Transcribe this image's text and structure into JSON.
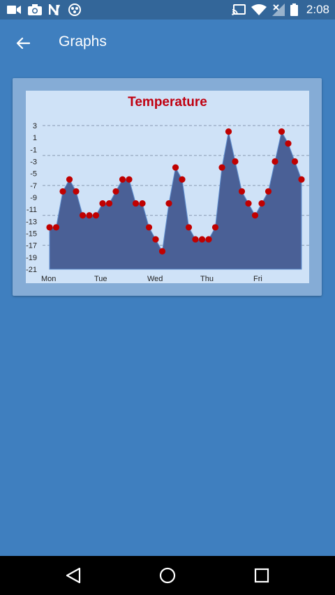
{
  "status_bar": {
    "time": "2:08",
    "left_icons": [
      "videocam-icon",
      "camera-icon",
      "n-notification-icon",
      "sync-dots-icon"
    ],
    "right_icons": [
      "cast-icon",
      "wifi-icon",
      "signal-off-icon",
      "battery-icon"
    ]
  },
  "app_bar": {
    "title": "Graphs"
  },
  "colors": {
    "background": "#3f7fbf",
    "status_bar": "#336699",
    "card": "#85acd6",
    "plot_bg": "#cfe2f7",
    "area_fill": "#4a6096",
    "marker": "#c00000",
    "title": "#c00010"
  },
  "chart_data": {
    "type": "area",
    "title": "Temperature",
    "xlabel": "",
    "ylabel": "",
    "ylim": [
      -21,
      3
    ],
    "y_ticks": [
      3,
      1,
      -1,
      -3,
      -5,
      -7,
      -9,
      -11,
      -13,
      -15,
      -17,
      -19,
      -21
    ],
    "gridlines_at": [
      3,
      -2,
      -7,
      -12,
      -17
    ],
    "x_tick_labels": [
      "Mon",
      "Tue",
      "Wed",
      "Thu",
      "Fri"
    ],
    "points_per_day": 8,
    "values": [
      -14,
      -14,
      -8,
      -6,
      -8,
      -12,
      -12,
      -12,
      -10,
      -10,
      -8,
      -6,
      -6,
      -10,
      -10,
      -14,
      -16,
      -18,
      -10,
      -4,
      -6,
      -14,
      -16,
      -16,
      -16,
      -14,
      -4,
      2,
      -3,
      -8,
      -10,
      -12,
      -10,
      -8,
      -3,
      2,
      0,
      -3,
      -6
    ],
    "markers": true,
    "grid": "horizontal dashed"
  },
  "nav_bar": {
    "buttons": [
      "back-nav-icon",
      "home-nav-icon",
      "recents-nav-icon"
    ]
  }
}
